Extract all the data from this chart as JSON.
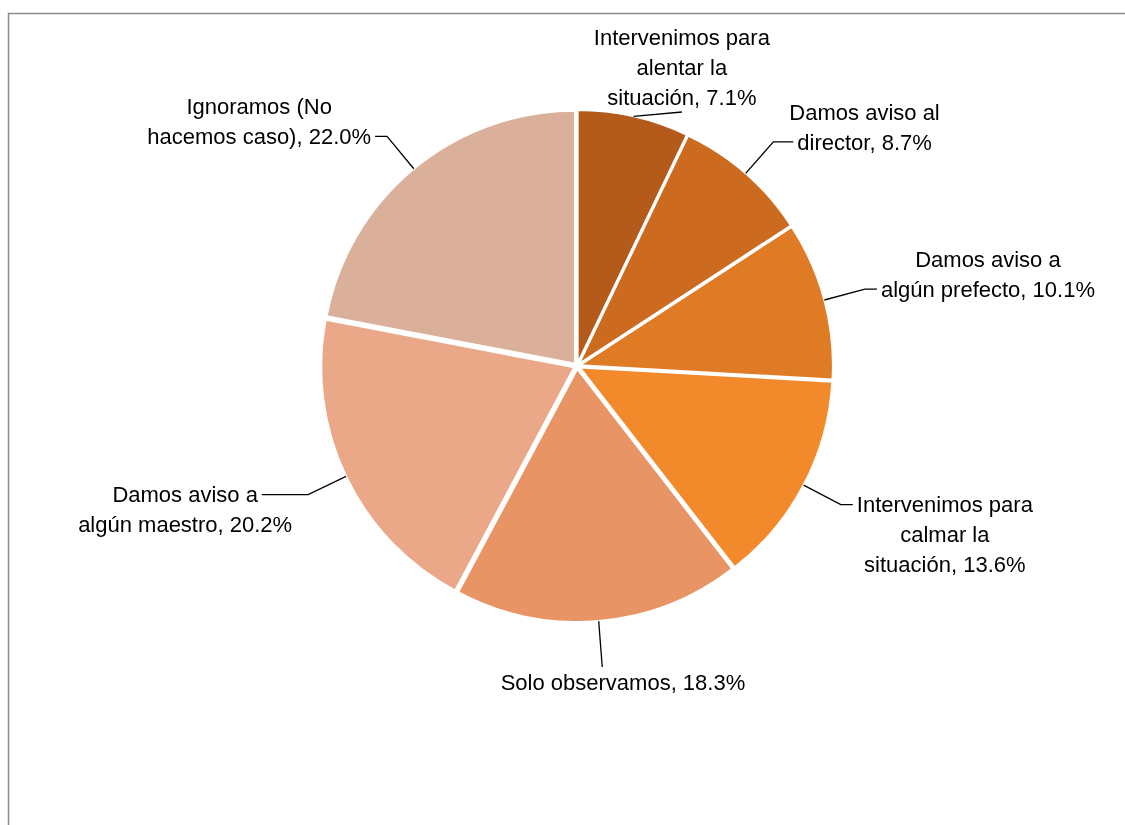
{
  "chart_data": {
    "type": "pie",
    "categories": [
      "Intervenimos para alentar la situación",
      "Damos aviso al director",
      "Damos aviso a algún prefecto",
      "Intervenimos para calmar la situación",
      "Solo observamos",
      "Damos aviso a algún maestro",
      "Ignoramos (No hacemos caso)"
    ],
    "values": [
      7.1,
      8.7,
      10.1,
      13.6,
      18.3,
      20.2,
      22.0
    ],
    "value_labels": [
      "7.1%",
      "8.7%",
      "10.1%",
      "13.6%",
      "18.3%",
      "20.2%",
      "22.0%"
    ],
    "colors": [
      "#b45b1b",
      "#cc6a1f",
      "#df7a25",
      "#f28a2b",
      "#e89464",
      "#eaa888",
      "#dbb09a"
    ]
  }
}
